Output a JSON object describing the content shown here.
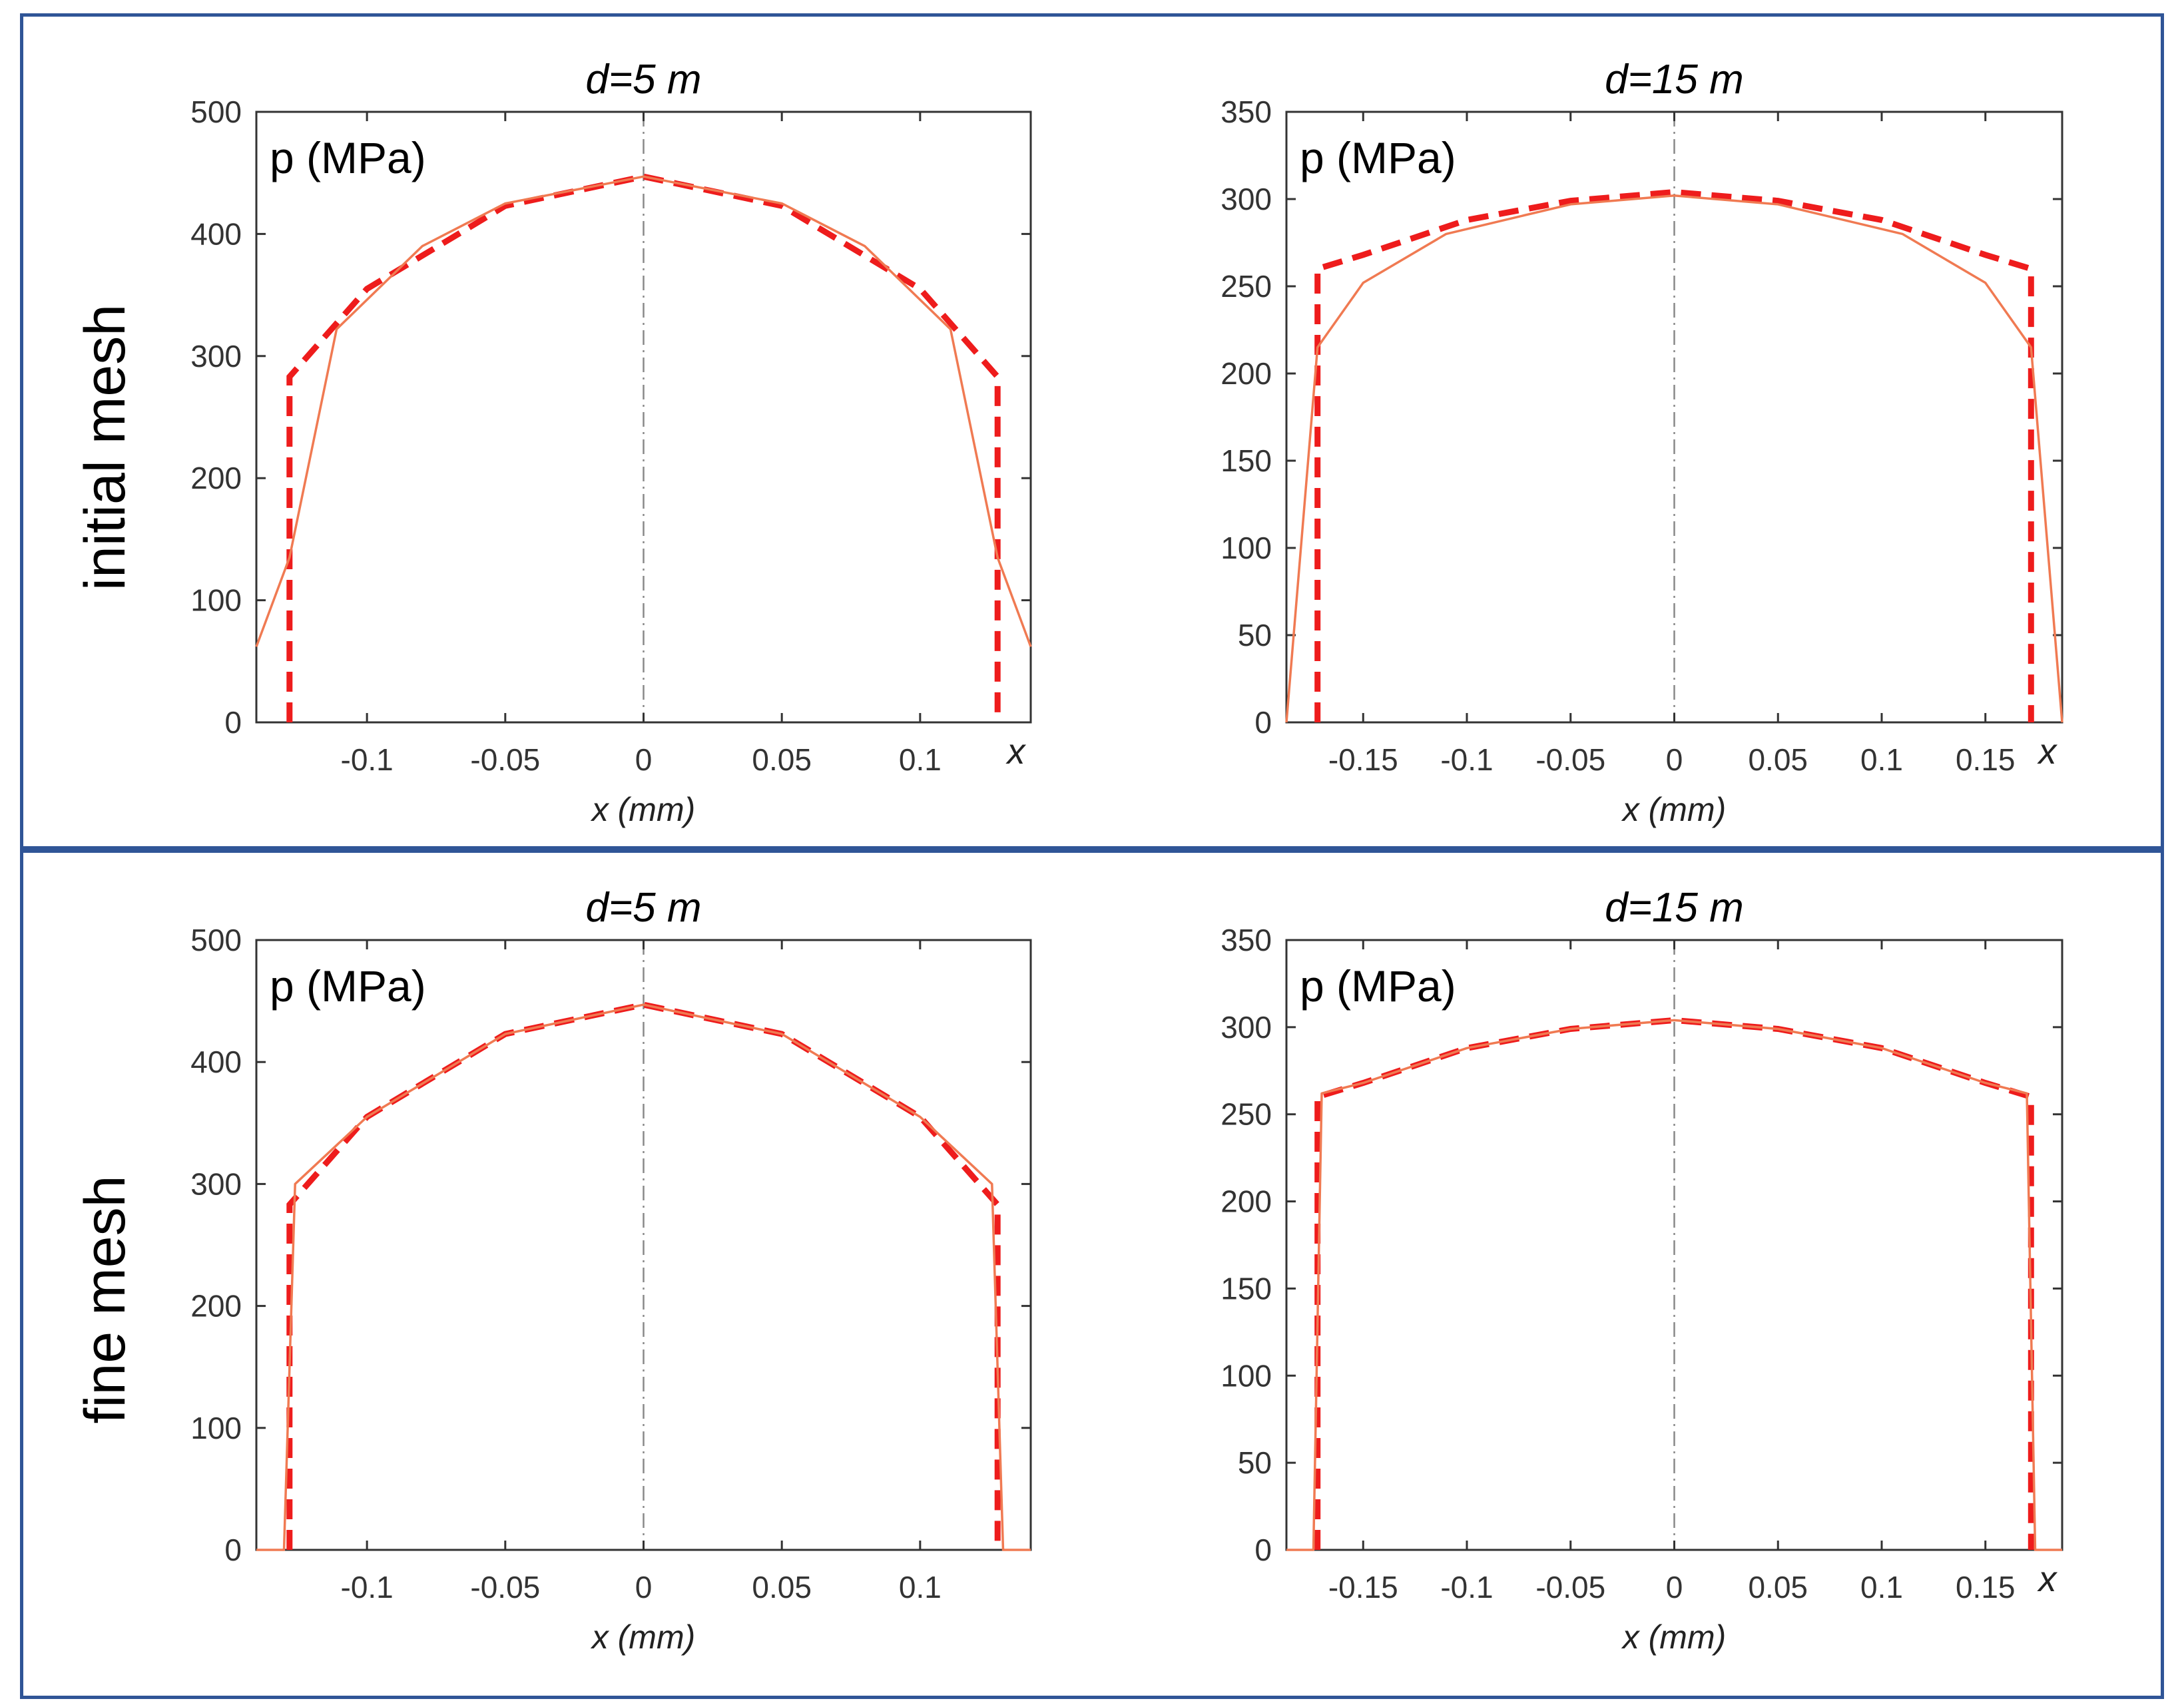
{
  "row_labels": [
    "initial mesh",
    "fine mesh"
  ],
  "colors": {
    "frame": "#2f5597",
    "dashed_series": "#ee1c1c",
    "solid_series": "#f07a52",
    "axes": "#333333",
    "centerline": "#888888"
  },
  "chart_data": [
    {
      "type": "line",
      "row": "initial mesh",
      "title": "d=5 m",
      "ylabel": "p (MPa)",
      "xlabel": "x (mm)",
      "x_end_label": "x",
      "xlim": [
        -0.14,
        0.14
      ],
      "ylim": [
        0,
        500
      ],
      "xticks": [
        -0.1,
        -0.05,
        0,
        0.05,
        0.1
      ],
      "xtick_labels": [
        "-0.1",
        "-0.05",
        "0",
        "0.05",
        "0.1"
      ],
      "yticks": [
        0,
        100,
        200,
        300,
        400,
        500
      ],
      "ytick_labels": [
        "0",
        "100",
        "200",
        "300",
        "400",
        "500"
      ],
      "centerline_x": 0,
      "series": [
        {
          "style": "dashed",
          "x": [
            -0.128,
            -0.128,
            -0.1,
            -0.05,
            0,
            0.05,
            0.1,
            0.128,
            0.128
          ],
          "y": [
            0,
            283,
            355,
            423,
            447,
            423,
            355,
            283,
            0
          ]
        },
        {
          "style": "solid",
          "x": [
            -0.14,
            -0.128,
            -0.111,
            -0.08,
            -0.05,
            0,
            0.05,
            0.08,
            0.111,
            0.128,
            0.14
          ],
          "y": [
            62,
            135,
            322,
            390,
            425,
            447,
            425,
            390,
            322,
            135,
            62
          ]
        }
      ]
    },
    {
      "type": "line",
      "row": "initial mesh",
      "title": "d=15 m",
      "ylabel": "p (MPa)",
      "xlabel": "x (mm)",
      "x_end_label": "x",
      "xlim": [
        -0.187,
        0.187
      ],
      "ylim": [
        0,
        350
      ],
      "xticks": [
        -0.15,
        -0.1,
        -0.05,
        0,
        0.05,
        0.1,
        0.15
      ],
      "xtick_labels": [
        "-0.15",
        "-0.1",
        "-0.05",
        "0",
        "0.05",
        "0.1",
        "0.15"
      ],
      "yticks": [
        0,
        50,
        100,
        150,
        200,
        250,
        300,
        350
      ],
      "ytick_labels": [
        "0",
        "50",
        "100",
        "150",
        "200",
        "250",
        "300",
        "350"
      ],
      "centerline_x": 0,
      "series": [
        {
          "style": "dashed",
          "x": [
            -0.172,
            -0.172,
            -0.15,
            -0.1,
            -0.05,
            0,
            0.05,
            0.1,
            0.15,
            0.172,
            0.172
          ],
          "y": [
            0,
            260,
            268,
            288,
            299,
            304,
            299,
            288,
            268,
            260,
            0
          ]
        },
        {
          "style": "solid",
          "x": [
            -0.187,
            -0.172,
            -0.15,
            -0.11,
            -0.05,
            0,
            0.05,
            0.11,
            0.15,
            0.172,
            0.187
          ],
          "y": [
            0,
            215,
            252,
            280,
            297,
            302,
            297,
            280,
            252,
            215,
            0
          ]
        }
      ]
    },
    {
      "type": "line",
      "row": "fine mesh",
      "title": "d=5 m",
      "ylabel": "p (MPa)",
      "xlabel": "x (mm)",
      "x_end_label": "",
      "xlim": [
        -0.14,
        0.14
      ],
      "ylim": [
        0,
        500
      ],
      "xticks": [
        -0.1,
        -0.05,
        0,
        0.05,
        0.1
      ],
      "xtick_labels": [
        "-0.1",
        "-0.05",
        "0",
        "0.05",
        "0.1"
      ],
      "yticks": [
        0,
        100,
        200,
        300,
        400,
        500
      ],
      "ytick_labels": [
        "0",
        "100",
        "200",
        "300",
        "400",
        "500"
      ],
      "centerline_x": 0,
      "series": [
        {
          "style": "dashed",
          "x": [
            -0.128,
            -0.128,
            -0.1,
            -0.05,
            0,
            0.05,
            0.1,
            0.128,
            0.128
          ],
          "y": [
            0,
            283,
            355,
            423,
            447,
            423,
            355,
            283,
            0
          ]
        },
        {
          "style": "solid",
          "x": [
            -0.14,
            -0.13,
            -0.126,
            -0.1,
            -0.05,
            0,
            0.05,
            0.1,
            0.126,
            0.13,
            0.14
          ],
          "y": [
            0,
            0,
            300,
            355,
            423,
            447,
            423,
            355,
            300,
            0,
            0
          ]
        }
      ]
    },
    {
      "type": "line",
      "row": "fine mesh",
      "title": "d=15 m",
      "ylabel": "p (MPa)",
      "xlabel": "x (mm)",
      "x_end_label": "x",
      "xlim": [
        -0.187,
        0.187
      ],
      "ylim": [
        0,
        350
      ],
      "xticks": [
        -0.15,
        -0.1,
        -0.05,
        0,
        0.05,
        0.1,
        0.15
      ],
      "xtick_labels": [
        "-0.15",
        "-0.1",
        "-0.05",
        "0",
        "0.05",
        "0.1",
        "0.15"
      ],
      "yticks": [
        0,
        50,
        100,
        150,
        200,
        250,
        300,
        350
      ],
      "ytick_labels": [
        "0",
        "50",
        "100",
        "150",
        "200",
        "250",
        "300",
        "350"
      ],
      "centerline_x": 0,
      "series": [
        {
          "style": "dashed",
          "x": [
            -0.172,
            -0.172,
            -0.15,
            -0.1,
            -0.05,
            0,
            0.05,
            0.1,
            0.15,
            0.172,
            0.172
          ],
          "y": [
            0,
            260,
            268,
            288,
            299,
            304,
            299,
            288,
            268,
            260,
            0
          ]
        },
        {
          "style": "solid",
          "x": [
            -0.187,
            -0.174,
            -0.17,
            -0.15,
            -0.1,
            -0.05,
            0,
            0.05,
            0.1,
            0.15,
            0.17,
            0.174,
            0.187
          ],
          "y": [
            0,
            0,
            262,
            268,
            288,
            299,
            304,
            299,
            288,
            268,
            262,
            0,
            0
          ]
        }
      ]
    }
  ]
}
